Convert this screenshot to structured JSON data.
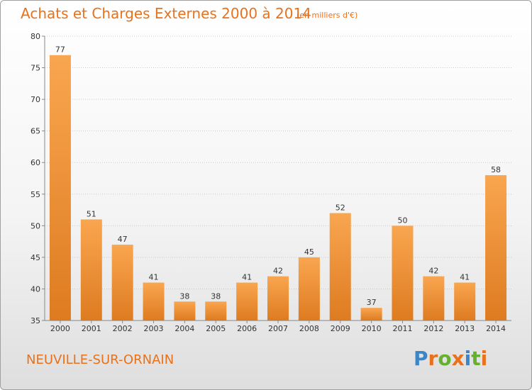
{
  "header": {
    "title": "Achats et Charges Externes 2000 à 2014",
    "subtitle": "(en milliers d'€)"
  },
  "footer": {
    "commune": "NEUVILLE-SUR-ORNAIN",
    "logo_letters": [
      {
        "ch": "P",
        "color": "#3b86c8"
      },
      {
        "ch": "r",
        "color": "#e8721c"
      },
      {
        "ch": "o",
        "color": "#66b030"
      },
      {
        "ch": "x",
        "color": "#e8721c"
      },
      {
        "ch": "i",
        "color": "#3b86c8"
      },
      {
        "ch": "t",
        "color": "#66b030"
      },
      {
        "ch": "i",
        "color": "#e8721c"
      }
    ]
  },
  "chart_data": {
    "type": "bar",
    "categories": [
      "2000",
      "2001",
      "2002",
      "2003",
      "2004",
      "2005",
      "2006",
      "2007",
      "2008",
      "2009",
      "2010",
      "2011",
      "2012",
      "2013",
      "2014"
    ],
    "values": [
      77,
      51,
      47,
      41,
      38,
      38,
      41,
      42,
      45,
      52,
      37,
      50,
      42,
      41,
      58
    ],
    "ylim": [
      35,
      80
    ],
    "yticks": [
      35,
      40,
      45,
      50,
      55,
      60,
      65,
      70,
      75,
      80
    ],
    "grid": true,
    "colors": {
      "bar_light": "#f9a650",
      "bar_dark": "#de7b20",
      "grid": "#cccccc",
      "axis": "#888888"
    }
  }
}
